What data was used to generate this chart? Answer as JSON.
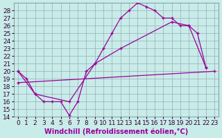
{
  "xlabel": "Windchill (Refroidissement éolien,°C)",
  "bg_color": "#c8ece8",
  "line_color": "#990099",
  "grid_color": "#99aabb",
  "xlim": [
    -0.5,
    23.5
  ],
  "ylim": [
    14,
    29
  ],
  "yticks": [
    14,
    15,
    16,
    17,
    18,
    19,
    20,
    21,
    22,
    23,
    24,
    25,
    26,
    27,
    28
  ],
  "xticks": [
    0,
    1,
    2,
    3,
    4,
    5,
    6,
    7,
    8,
    9,
    10,
    11,
    12,
    13,
    14,
    15,
    16,
    17,
    18,
    19,
    20,
    21,
    22,
    23
  ],
  "line1_x": [
    0,
    1,
    2,
    3,
    4,
    5,
    6,
    7,
    8,
    9,
    10,
    11,
    12,
    13,
    14,
    15,
    16,
    17,
    18,
    19,
    20,
    21,
    22
  ],
  "line1_y": [
    20.0,
    19.0,
    17.0,
    16.0,
    16.0,
    16.0,
    14.2,
    16.0,
    20.0,
    21.0,
    23.0,
    25.0,
    27.0,
    28.0,
    29.0,
    28.5,
    28.0,
    27.0,
    27.0,
    26.0,
    26.0,
    25.0,
    20.5
  ],
  "line2_x": [
    0,
    2,
    6,
    9,
    12,
    18,
    20,
    22
  ],
  "line2_y": [
    20.0,
    17.0,
    16.0,
    21.0,
    23.0,
    26.5,
    26.0,
    20.5
  ],
  "line3_x": [
    0,
    23
  ],
  "line3_y": [
    18.5,
    20.0
  ],
  "xlabel_fontsize": 7,
  "tick_fontsize": 6.5
}
